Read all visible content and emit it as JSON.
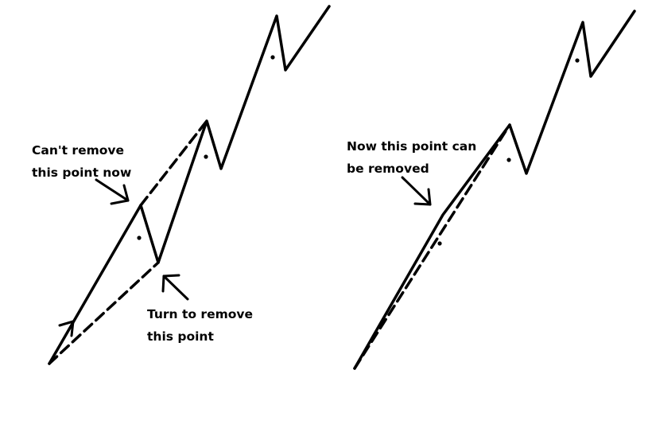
{
  "colors": {
    "ink": "#000000",
    "background": "#ffffff"
  },
  "annotations": {
    "cant_remove": [
      "Can't remove",
      "this point now"
    ],
    "turn_to_remove": [
      "Turn to remove",
      "this point"
    ],
    "now_removed": [
      "Now this point can",
      "be removed"
    ]
  }
}
